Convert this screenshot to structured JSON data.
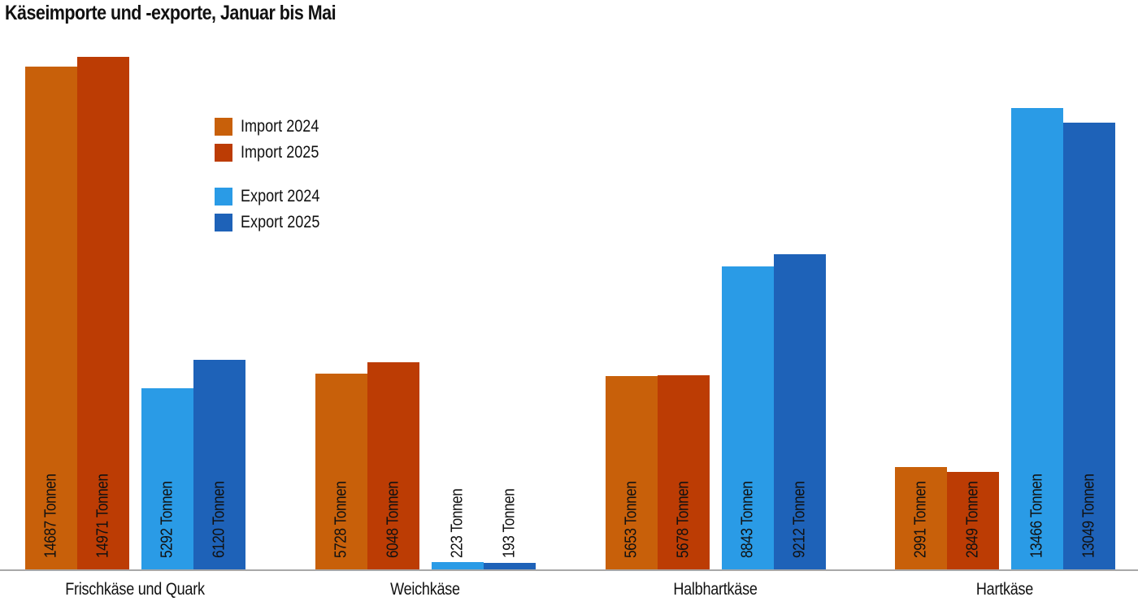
{
  "title": "Käseimporte und -exporte, Januar bis Mai",
  "legend": [
    {
      "label": "Import 2024",
      "color": "#C8600A"
    },
    {
      "label": "Import 2025",
      "color": "#BC3C04"
    },
    {
      "label": "Export 2024",
      "color": "#2A9BE6"
    },
    {
      "label": "Export 2025",
      "color": "#1E62B8"
    }
  ],
  "categories": [
    {
      "label": "Frischkäse und Quark",
      "values": [
        {
          "value": 14687,
          "text": "14687 Tonnen"
        },
        {
          "value": 14971,
          "text": "14971 Tonnen"
        },
        {
          "value": 5292,
          "text": "5292 Tonnen"
        },
        {
          "value": 6120,
          "text": "6120 Tonnen"
        }
      ]
    },
    {
      "label": "Weichkäse",
      "values": [
        {
          "value": 5728,
          "text": "5728 Tonnen"
        },
        {
          "value": 6048,
          "text": "6048 Tonnen"
        },
        {
          "value": 223,
          "text": "223 Tonnen"
        },
        {
          "value": 193,
          "text": "193 Tonnen"
        }
      ]
    },
    {
      "label": "Halbhartkäse",
      "values": [
        {
          "value": 5653,
          "text": "5653 Tonnen"
        },
        {
          "value": 5678,
          "text": "5678 Tonnen"
        },
        {
          "value": 8843,
          "text": "8843 Tonnen"
        },
        {
          "value": 9212,
          "text": "9212 Tonnen"
        }
      ]
    },
    {
      "label": "Hartkäse",
      "values": [
        {
          "value": 2991,
          "text": "2991 Tonnen"
        },
        {
          "value": 2849,
          "text": "2849 Tonnen"
        },
        {
          "value": 13466,
          "text": "13466 Tonnen"
        },
        {
          "value": 13049,
          "text": "13049 Tonnen"
        }
      ]
    }
  ],
  "chart_data": {
    "type": "bar",
    "title": "Käseimporte und -exporte, Januar bis Mai",
    "xlabel": "",
    "ylabel": "Tonnen",
    "categories": [
      "Frischkäse und Quark",
      "Weichkäse",
      "Halbhartkäse",
      "Hartkäse"
    ],
    "series": [
      {
        "name": "Import 2024",
        "values": [
          14687,
          5728,
          5653,
          2991
        ]
      },
      {
        "name": "Import 2025",
        "values": [
          14971,
          6048,
          5678,
          2849
        ]
      },
      {
        "name": "Export 2024",
        "values": [
          5292,
          223,
          8843,
          13466
        ]
      },
      {
        "name": "Export 2025",
        "values": [
          6120,
          193,
          9212,
          13049
        ]
      }
    ],
    "data_label_unit": "Tonnen",
    "ylim": [
      0,
      15500
    ],
    "grid": false,
    "legend_position": "upper-left-inside",
    "y_axis_visible": false
  }
}
